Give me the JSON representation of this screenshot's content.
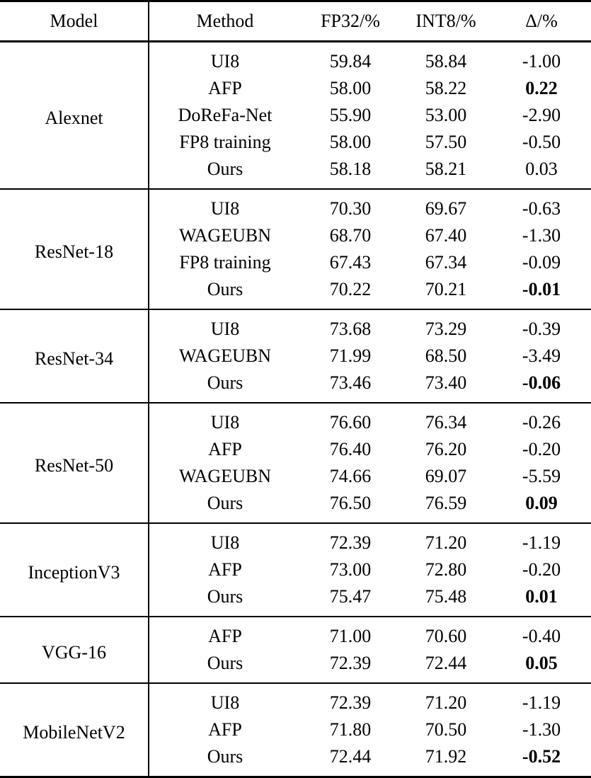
{
  "table": {
    "headers": [
      "Model",
      "Method",
      "FP32/%",
      "INT8/%",
      "Δ/%"
    ],
    "groups": [
      {
        "model": "Alexnet",
        "rows": [
          {
            "method": "UI8",
            "fp32": "59.84",
            "int8": "58.84",
            "delta": "-1.00",
            "bold": false
          },
          {
            "method": "AFP",
            "fp32": "58.00",
            "int8": "58.22",
            "delta": "0.22",
            "bold": true
          },
          {
            "method": "DoReFa-Net",
            "fp32": "55.90",
            "int8": "53.00",
            "delta": "-2.90",
            "bold": false
          },
          {
            "method": "FP8 training",
            "fp32": "58.00",
            "int8": "57.50",
            "delta": "-0.50",
            "bold": false
          },
          {
            "method": "Ours",
            "fp32": "58.18",
            "int8": "58.21",
            "delta": "0.03",
            "bold": false
          }
        ]
      },
      {
        "model": "ResNet-18",
        "rows": [
          {
            "method": "UI8",
            "fp32": "70.30",
            "int8": "69.67",
            "delta": "-0.63",
            "bold": false
          },
          {
            "method": "WAGEUBN",
            "fp32": "68.70",
            "int8": "67.40",
            "delta": "-1.30",
            "bold": false
          },
          {
            "method": "FP8 training",
            "fp32": "67.43",
            "int8": "67.34",
            "delta": "-0.09",
            "bold": false
          },
          {
            "method": "Ours",
            "fp32": "70.22",
            "int8": "70.21",
            "delta": "-0.01",
            "bold": true
          }
        ]
      },
      {
        "model": "ResNet-34",
        "rows": [
          {
            "method": "UI8",
            "fp32": "73.68",
            "int8": "73.29",
            "delta": "-0.39",
            "bold": false
          },
          {
            "method": "WAGEUBN",
            "fp32": "71.99",
            "int8": "68.50",
            "delta": "-3.49",
            "bold": false
          },
          {
            "method": "Ours",
            "fp32": "73.46",
            "int8": "73.40",
            "delta": "-0.06",
            "bold": true
          }
        ]
      },
      {
        "model": "ResNet-50",
        "rows": [
          {
            "method": "UI8",
            "fp32": "76.60",
            "int8": "76.34",
            "delta": "-0.26",
            "bold": false
          },
          {
            "method": "AFP",
            "fp32": "76.40",
            "int8": "76.20",
            "delta": "-0.20",
            "bold": false
          },
          {
            "method": "WAGEUBN",
            "fp32": "74.66",
            "int8": "69.07",
            "delta": "-5.59",
            "bold": false
          },
          {
            "method": "Ours",
            "fp32": "76.50",
            "int8": "76.59",
            "delta": "0.09",
            "bold": true
          }
        ]
      },
      {
        "model": "InceptionV3",
        "rows": [
          {
            "method": "UI8",
            "fp32": "72.39",
            "int8": "71.20",
            "delta": "-1.19",
            "bold": false
          },
          {
            "method": "AFP",
            "fp32": "73.00",
            "int8": "72.80",
            "delta": "-0.20",
            "bold": false
          },
          {
            "method": "Ours",
            "fp32": "75.47",
            "int8": "75.48",
            "delta": "0.01",
            "bold": true
          }
        ]
      },
      {
        "model": "VGG-16",
        "rows": [
          {
            "method": "AFP",
            "fp32": "71.00",
            "int8": "70.60",
            "delta": "-0.40",
            "bold": false
          },
          {
            "method": "Ours",
            "fp32": "72.39",
            "int8": "72.44",
            "delta": "0.05",
            "bold": true
          }
        ]
      },
      {
        "model": "MobileNetV2",
        "rows": [
          {
            "method": "UI8",
            "fp32": "72.39",
            "int8": "71.20",
            "delta": "-1.19",
            "bold": false
          },
          {
            "method": "AFP",
            "fp32": "71.80",
            "int8": "70.50",
            "delta": "-1.30",
            "bold": false
          },
          {
            "method": "Ours",
            "fp32": "72.44",
            "int8": "71.92",
            "delta": "-0.52",
            "bold": true
          }
        ]
      }
    ]
  }
}
